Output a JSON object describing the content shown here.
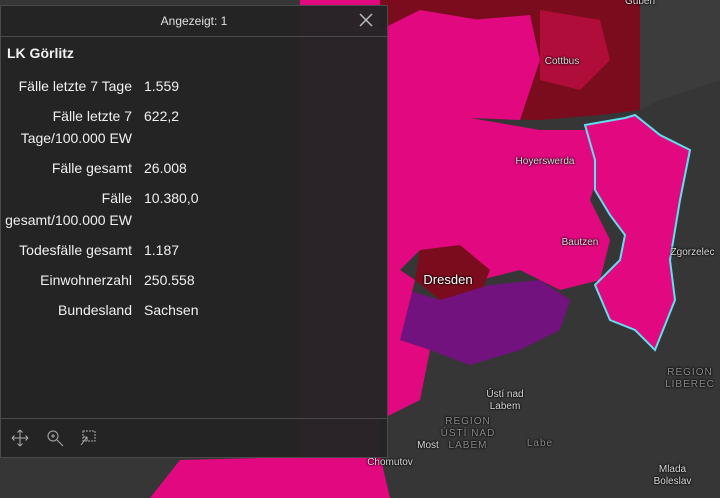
{
  "popup": {
    "header": "Angezeigt: 1",
    "title": "LK Görlitz",
    "fields": [
      {
        "label": "Fälle letzte 7 Tage",
        "value": "1.559"
      },
      {
        "label": "Fälle letzte 7 Tage/100.000 EW",
        "value": "622,2"
      },
      {
        "label": "Fälle gesamt",
        "value": "26.008"
      },
      {
        "label": "Fälle gesamt/100.000 EW",
        "value": "10.380,0"
      },
      {
        "label": "Todesfälle gesamt",
        "value": "1.187"
      },
      {
        "label": "Einwohnerzahl",
        "value": "250.558"
      },
      {
        "label": "Bundesland",
        "value": "Sachsen"
      }
    ]
  },
  "map_labels": [
    "Guben",
    "Cottbus",
    "Hoyerswerda",
    "Bautzen",
    "Zgorzelec",
    "Dresden",
    "Ústí nad Labem",
    "REGION ÚSTÍ NAD LABEM",
    "Most",
    "Labe",
    "Chomutov",
    "REGION LIBEREC",
    "Mlada Boleslav"
  ]
}
